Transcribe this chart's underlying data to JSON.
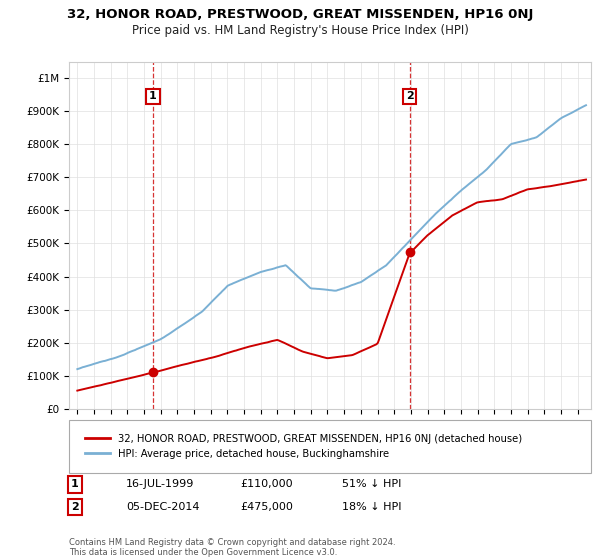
{
  "title": "32, HONOR ROAD, PRESTWOOD, GREAT MISSENDEN, HP16 0NJ",
  "subtitle": "Price paid vs. HM Land Registry's House Price Index (HPI)",
  "legend_line1": "32, HONOR ROAD, PRESTWOOD, GREAT MISSENDEN, HP16 0NJ (detached house)",
  "legend_line2": "HPI: Average price, detached house, Buckinghamshire",
  "footnote": "Contains HM Land Registry data © Crown copyright and database right 2024.\nThis data is licensed under the Open Government Licence v3.0.",
  "sale1_label": "1",
  "sale1_date": "16-JUL-1999",
  "sale1_price": "£110,000",
  "sale1_hpi": "51% ↓ HPI",
  "sale2_label": "2",
  "sale2_date": "05-DEC-2014",
  "sale2_price": "£475,000",
  "sale2_hpi": "18% ↓ HPI",
  "red_color": "#cc0000",
  "blue_color": "#7ab0d4",
  "marker1_x": 1999.54,
  "marker1_y": 110000,
  "marker2_x": 2014.92,
  "marker2_y": 475000,
  "ylim_min": 0,
  "ylim_max": 1050000,
  "xlim_min": 1994.5,
  "xlim_max": 2025.8,
  "yticks": [
    0,
    100000,
    200000,
    300000,
    400000,
    500000,
    600000,
    700000,
    800000,
    900000,
    1000000
  ],
  "ylabel_fmt": [
    "£0",
    "£100K",
    "£200K",
    "£300K",
    "£400K",
    "£500K",
    "£600K",
    "£700K",
    "£800K",
    "£900K",
    "£1M"
  ]
}
